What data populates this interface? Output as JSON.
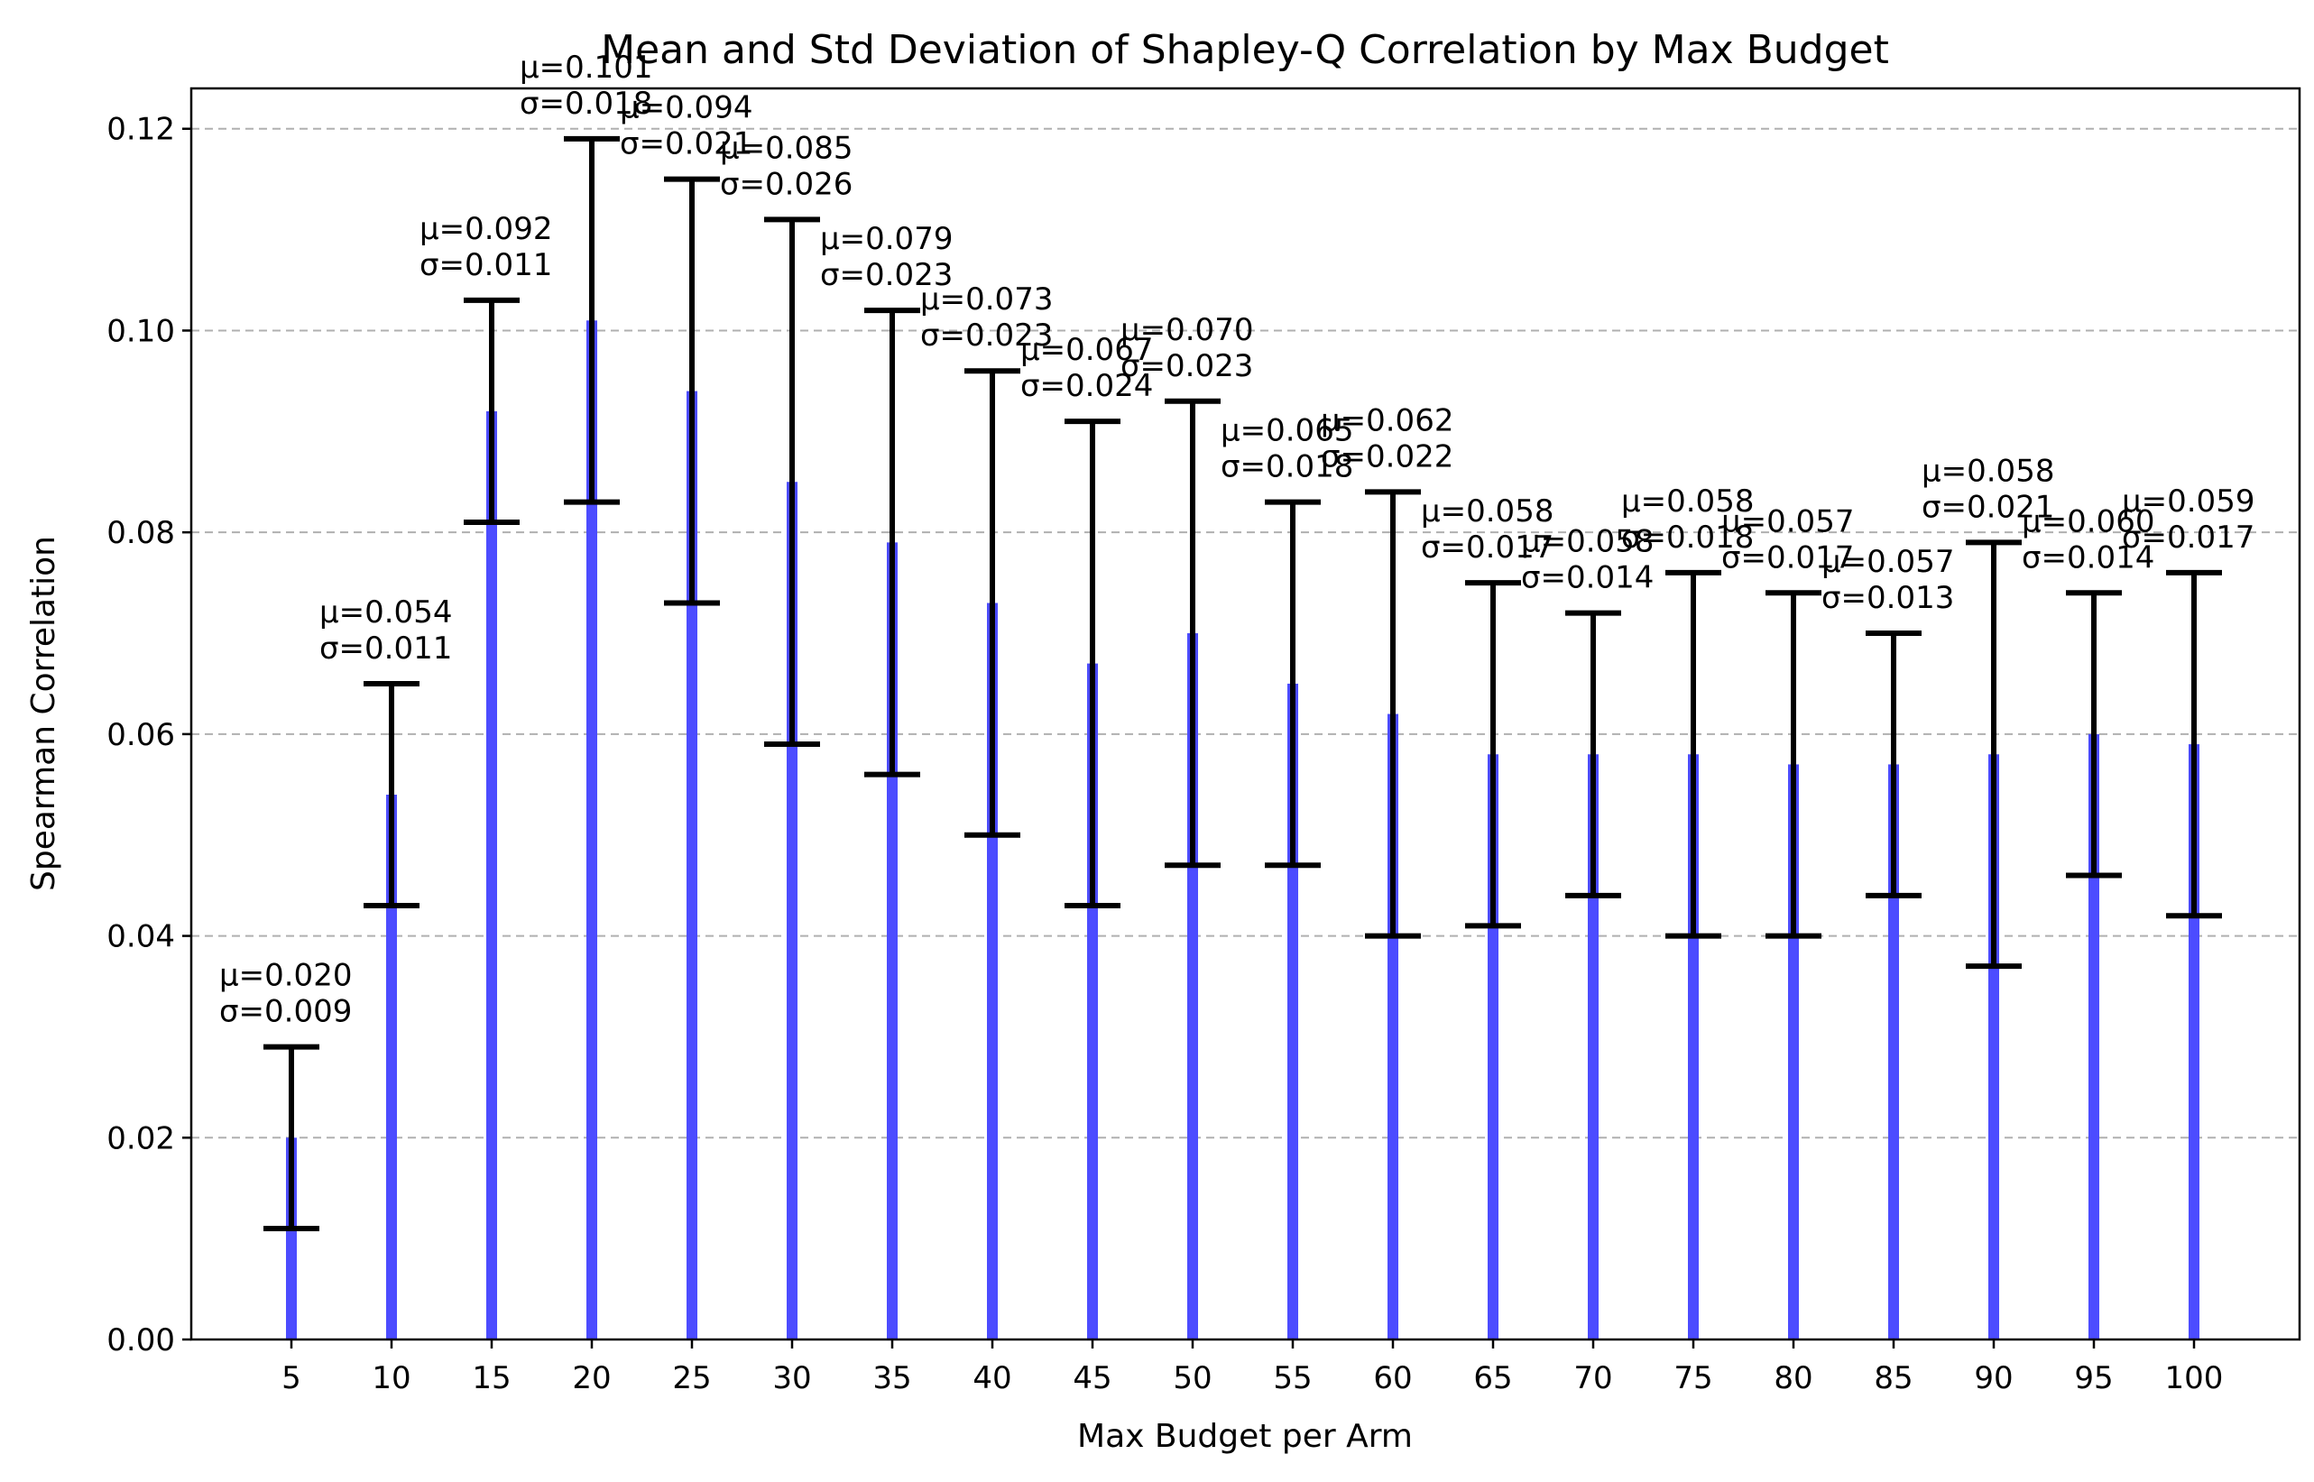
{
  "chart_data": {
    "type": "bar",
    "title": "Mean and Std Deviation of Shapley-Q Correlation by Max Budget",
    "xlabel": "Max Budget per Arm",
    "ylabel": "Spearman Correlation",
    "ylim": [
      0,
      0.124
    ],
    "yticks": [
      "0.00",
      "0.02",
      "0.04",
      "0.06",
      "0.08",
      "0.10",
      "0.12"
    ],
    "ytick_values": [
      0,
      0.02,
      0.04,
      0.06,
      0.08,
      0.1,
      0.12
    ],
    "grid": "horizontal dashed",
    "bar_color": "#4c4cff",
    "error_color": "#000000",
    "categories": [
      "5",
      "10",
      "15",
      "20",
      "25",
      "30",
      "35",
      "40",
      "45",
      "50",
      "55",
      "60",
      "65",
      "70",
      "75",
      "80",
      "85",
      "90",
      "95",
      "100"
    ],
    "series": [
      {
        "name": "mean",
        "values": [
          0.02,
          0.054,
          0.092,
          0.101,
          0.094,
          0.085,
          0.079,
          0.073,
          0.067,
          0.07,
          0.065,
          0.062,
          0.058,
          0.058,
          0.058,
          0.057,
          0.057,
          0.058,
          0.06,
          0.059
        ]
      },
      {
        "name": "std",
        "values": [
          0.009,
          0.011,
          0.011,
          0.018,
          0.021,
          0.026,
          0.023,
          0.023,
          0.024,
          0.023,
          0.018,
          0.022,
          0.017,
          0.014,
          0.018,
          0.017,
          0.013,
          0.021,
          0.014,
          0.017
        ]
      }
    ],
    "mean_labels": [
      "μ=0.020",
      "μ=0.054",
      "μ=0.092",
      "μ=0.101",
      "μ=0.094",
      "μ=0.085",
      "μ=0.079",
      "μ=0.073",
      "μ=0.067",
      "μ=0.070",
      "μ=0.065",
      "μ=0.062",
      "μ=0.058",
      "μ=0.058",
      "μ=0.058",
      "μ=0.057",
      "μ=0.057",
      "μ=0.058",
      "μ=0.060",
      "μ=0.059"
    ],
    "std_labels": [
      "σ=0.009",
      "σ=0.011",
      "σ=0.011",
      "σ=0.018",
      "σ=0.021",
      "σ=0.026",
      "σ=0.023",
      "σ=0.023",
      "σ=0.024",
      "σ=0.023",
      "σ=0.018",
      "σ=0.022",
      "σ=0.017",
      "σ=0.014",
      "σ=0.018",
      "σ=0.017",
      "σ=0.013",
      "σ=0.021",
      "σ=0.014",
      "σ=0.017"
    ]
  }
}
